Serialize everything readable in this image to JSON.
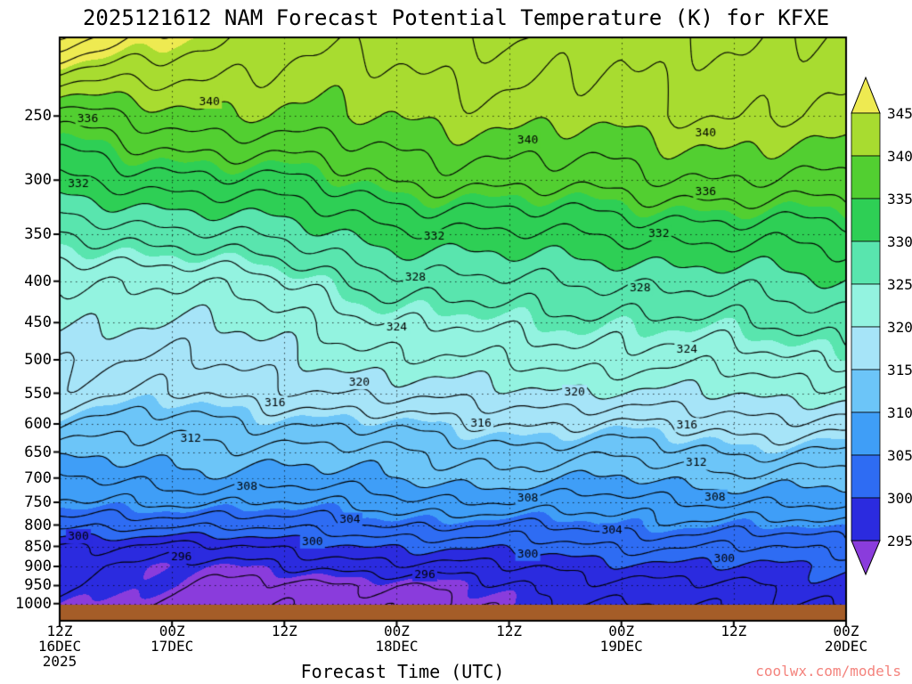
{
  "title": "2025121612 NAM Forecast Potential Temperature (K) for KFXE",
  "watermark": {
    "text": "coolwx.com/models",
    "color": "#f4837d"
  },
  "chart_data": {
    "type": "heatmap",
    "title": "2025121612 NAM Forecast Potential Temperature (K) for KFXE",
    "xlabel": "Forecast Time (UTC)",
    "ylabel": "",
    "y_scale": "log",
    "ylim": [
      1050,
      200
    ],
    "xlim_hours": [
      0,
      84
    ],
    "y_ticks": [
      250,
      300,
      350,
      400,
      450,
      500,
      550,
      600,
      650,
      700,
      750,
      800,
      850,
      900,
      950,
      1000
    ],
    "x_ticks": [
      {
        "hour": 0,
        "lines": [
          "12Z",
          "16DEC",
          "2025"
        ]
      },
      {
        "hour": 12,
        "lines": [
          "00Z",
          "17DEC"
        ]
      },
      {
        "hour": 24,
        "lines": [
          "12Z"
        ]
      },
      {
        "hour": 36,
        "lines": [
          "00Z",
          "18DEC"
        ]
      },
      {
        "hour": 48,
        "lines": [
          "12Z"
        ]
      },
      {
        "hour": 60,
        "lines": [
          "00Z",
          "19DEC"
        ]
      },
      {
        "hour": 72,
        "lines": [
          "12Z"
        ]
      },
      {
        "hour": 84,
        "lines": [
          "00Z",
          "20DEC"
        ]
      }
    ],
    "grid": {
      "times_hours": [
        0,
        12,
        24,
        36,
        48,
        60,
        72,
        84
      ],
      "pressures": [
        200,
        250,
        300,
        350,
        400,
        450,
        500,
        550,
        600,
        650,
        700,
        750,
        800,
        850,
        900,
        950,
        1000,
        1050
      ],
      "values": [
        [
          350,
          345,
          343,
          343,
          344,
          343,
          344,
          344
        ],
        [
          337,
          339,
          340,
          340,
          341,
          341,
          342,
          342
        ],
        [
          332,
          333,
          334,
          336,
          337,
          337,
          338,
          338
        ],
        [
          326,
          327,
          329,
          331,
          332,
          332,
          333,
          333
        ],
        [
          322,
          322,
          324,
          327,
          328,
          328,
          329,
          330
        ],
        [
          320,
          320,
          321,
          324,
          325,
          325,
          326,
          327
        ],
        [
          318,
          318,
          319,
          322,
          322,
          323,
          323,
          324
        ],
        [
          317,
          316,
          317,
          319,
          319,
          320,
          320,
          321
        ],
        [
          314,
          313,
          314,
          315,
          316,
          316,
          317,
          317
        ],
        [
          311,
          311,
          311,
          312,
          313,
          313,
          314,
          314
        ],
        [
          308,
          309,
          309,
          310,
          311,
          310,
          311,
          311
        ],
        [
          306,
          306,
          306,
          307,
          308,
          307,
          308,
          309
        ],
        [
          303,
          302,
          303,
          304,
          304,
          305,
          305,
          306
        ],
        [
          298,
          297,
          299,
          300,
          301,
          302,
          302,
          303
        ],
        [
          296,
          295,
          296,
          297,
          298,
          299,
          300,
          300
        ],
        [
          296,
          295,
          293,
          294,
          296,
          297,
          298,
          299
        ],
        [
          295,
          294,
          292,
          293,
          295,
          296,
          297,
          298
        ],
        [
          294,
          293,
          292,
          293,
          294,
          295,
          296,
          297
        ]
      ]
    },
    "fill_levels": [
      295,
      300,
      305,
      310,
      315,
      320,
      325,
      330,
      335,
      340,
      345
    ],
    "fill_colors": [
      "#8a3cdc",
      "#2b2bdf",
      "#2e6cf3",
      "#3f9ef7",
      "#6cc5f8",
      "#a6e4f8",
      "#93f3e0",
      "#59e5ae",
      "#2ecf55",
      "#52cf31",
      "#a8dc30",
      "#eeea51"
    ],
    "contour_interval": 2,
    "contour_color": "#000000",
    "contour_labels": [
      {
        "v": 340,
        "t": 16,
        "p": 240
      },
      {
        "v": 340,
        "t": 50,
        "p": 268
      },
      {
        "v": 340,
        "t": 69,
        "p": 262
      },
      {
        "v": 336,
        "t": 3,
        "p": 252
      },
      {
        "v": 336,
        "t": 69,
        "p": 310
      },
      {
        "v": 332,
        "t": 2,
        "p": 303
      },
      {
        "v": 332,
        "t": 40,
        "p": 352
      },
      {
        "v": 332,
        "t": 64,
        "p": 349
      },
      {
        "v": 328,
        "t": 38,
        "p": 395
      },
      {
        "v": 328,
        "t": 62,
        "p": 408
      },
      {
        "v": 324,
        "t": 36,
        "p": 455
      },
      {
        "v": 324,
        "t": 67,
        "p": 485
      },
      {
        "v": 320,
        "t": 32,
        "p": 533
      },
      {
        "v": 320,
        "t": 55,
        "p": 548
      },
      {
        "v": 316,
        "t": 23,
        "p": 565
      },
      {
        "v": 316,
        "t": 45,
        "p": 598
      },
      {
        "v": 316,
        "t": 67,
        "p": 602
      },
      {
        "v": 312,
        "t": 14,
        "p": 625
      },
      {
        "v": 312,
        "t": 68,
        "p": 670
      },
      {
        "v": 308,
        "t": 20,
        "p": 716
      },
      {
        "v": 308,
        "t": 50,
        "p": 740
      },
      {
        "v": 308,
        "t": 70,
        "p": 738
      },
      {
        "v": 304,
        "t": 31,
        "p": 788
      },
      {
        "v": 304,
        "t": 59,
        "p": 812
      },
      {
        "v": 300,
        "t": 2,
        "p": 826
      },
      {
        "v": 300,
        "t": 27,
        "p": 838
      },
      {
        "v": 300,
        "t": 50,
        "p": 868
      },
      {
        "v": 300,
        "t": 71,
        "p": 880
      },
      {
        "v": 296,
        "t": 13,
        "p": 875
      },
      {
        "v": 296,
        "t": 39,
        "p": 920
      }
    ],
    "surface_color": "#a55d28",
    "legend_position": "right"
  }
}
